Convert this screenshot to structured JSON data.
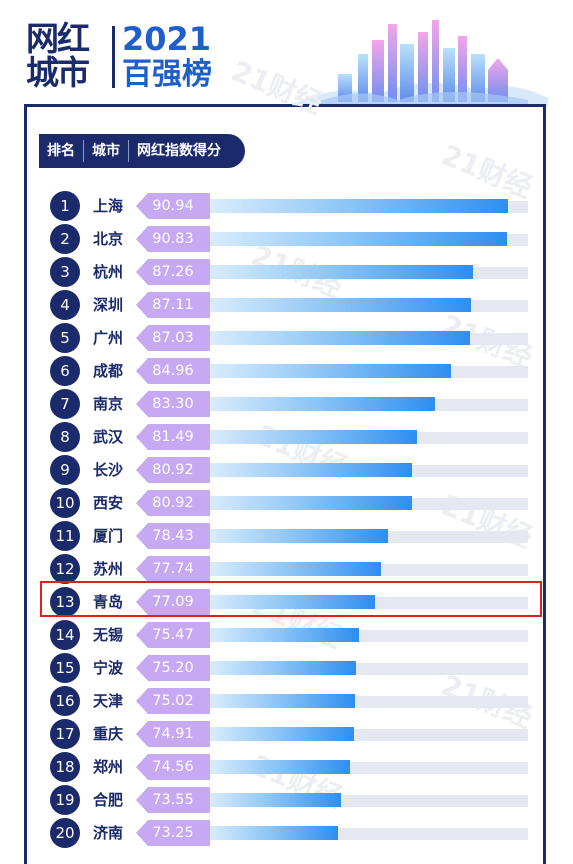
{
  "header": {
    "logo_line1": "网红",
    "logo_line2": "城市",
    "year": "2021",
    "subtitle": "百强榜"
  },
  "watermark": "21财经",
  "columns": {
    "rank": "排名",
    "city": "城市",
    "score": "网红指数得分"
  },
  "highlight_rank": 13,
  "chart_data": {
    "type": "bar",
    "orientation": "horizontal",
    "title": "2021 百强榜",
    "categories": [
      "上海",
      "北京",
      "杭州",
      "深圳",
      "广州",
      "成都",
      "南京",
      "武汉",
      "长沙",
      "西安",
      "厦门",
      "苏州",
      "青岛",
      "无锡",
      "宁波",
      "天津",
      "重庆",
      "郑州",
      "合肥",
      "济南"
    ],
    "ranks": [
      1,
      2,
      3,
      4,
      5,
      6,
      7,
      8,
      9,
      10,
      11,
      12,
      13,
      14,
      15,
      16,
      17,
      18,
      19,
      20
    ],
    "values": [
      90.94,
      90.83,
      87.26,
      87.11,
      87.03,
      84.96,
      83.3,
      81.49,
      80.92,
      80.92,
      78.43,
      77.74,
      77.09,
      75.47,
      75.2,
      75.02,
      74.91,
      74.56,
      73.55,
      73.25
    ],
    "value_labels": [
      "90.94",
      "90.83",
      "87.26",
      "87.11",
      "87.03",
      "84.96",
      "83.30",
      "81.49",
      "80.92",
      "80.92",
      "78.43",
      "77.74",
      "77.09",
      "75.47",
      "75.20",
      "75.02",
      "74.91",
      "74.56",
      "73.55",
      "73.25"
    ],
    "xlim": [
      0,
      100
    ],
    "grid": false,
    "colors": {
      "bar_end": "#2f8ef0",
      "bar_start": "#d9ecfc",
      "tag": "#c6a8f3",
      "rank_circle": "#1b2a6b",
      "highlight": "#e02020"
    }
  }
}
